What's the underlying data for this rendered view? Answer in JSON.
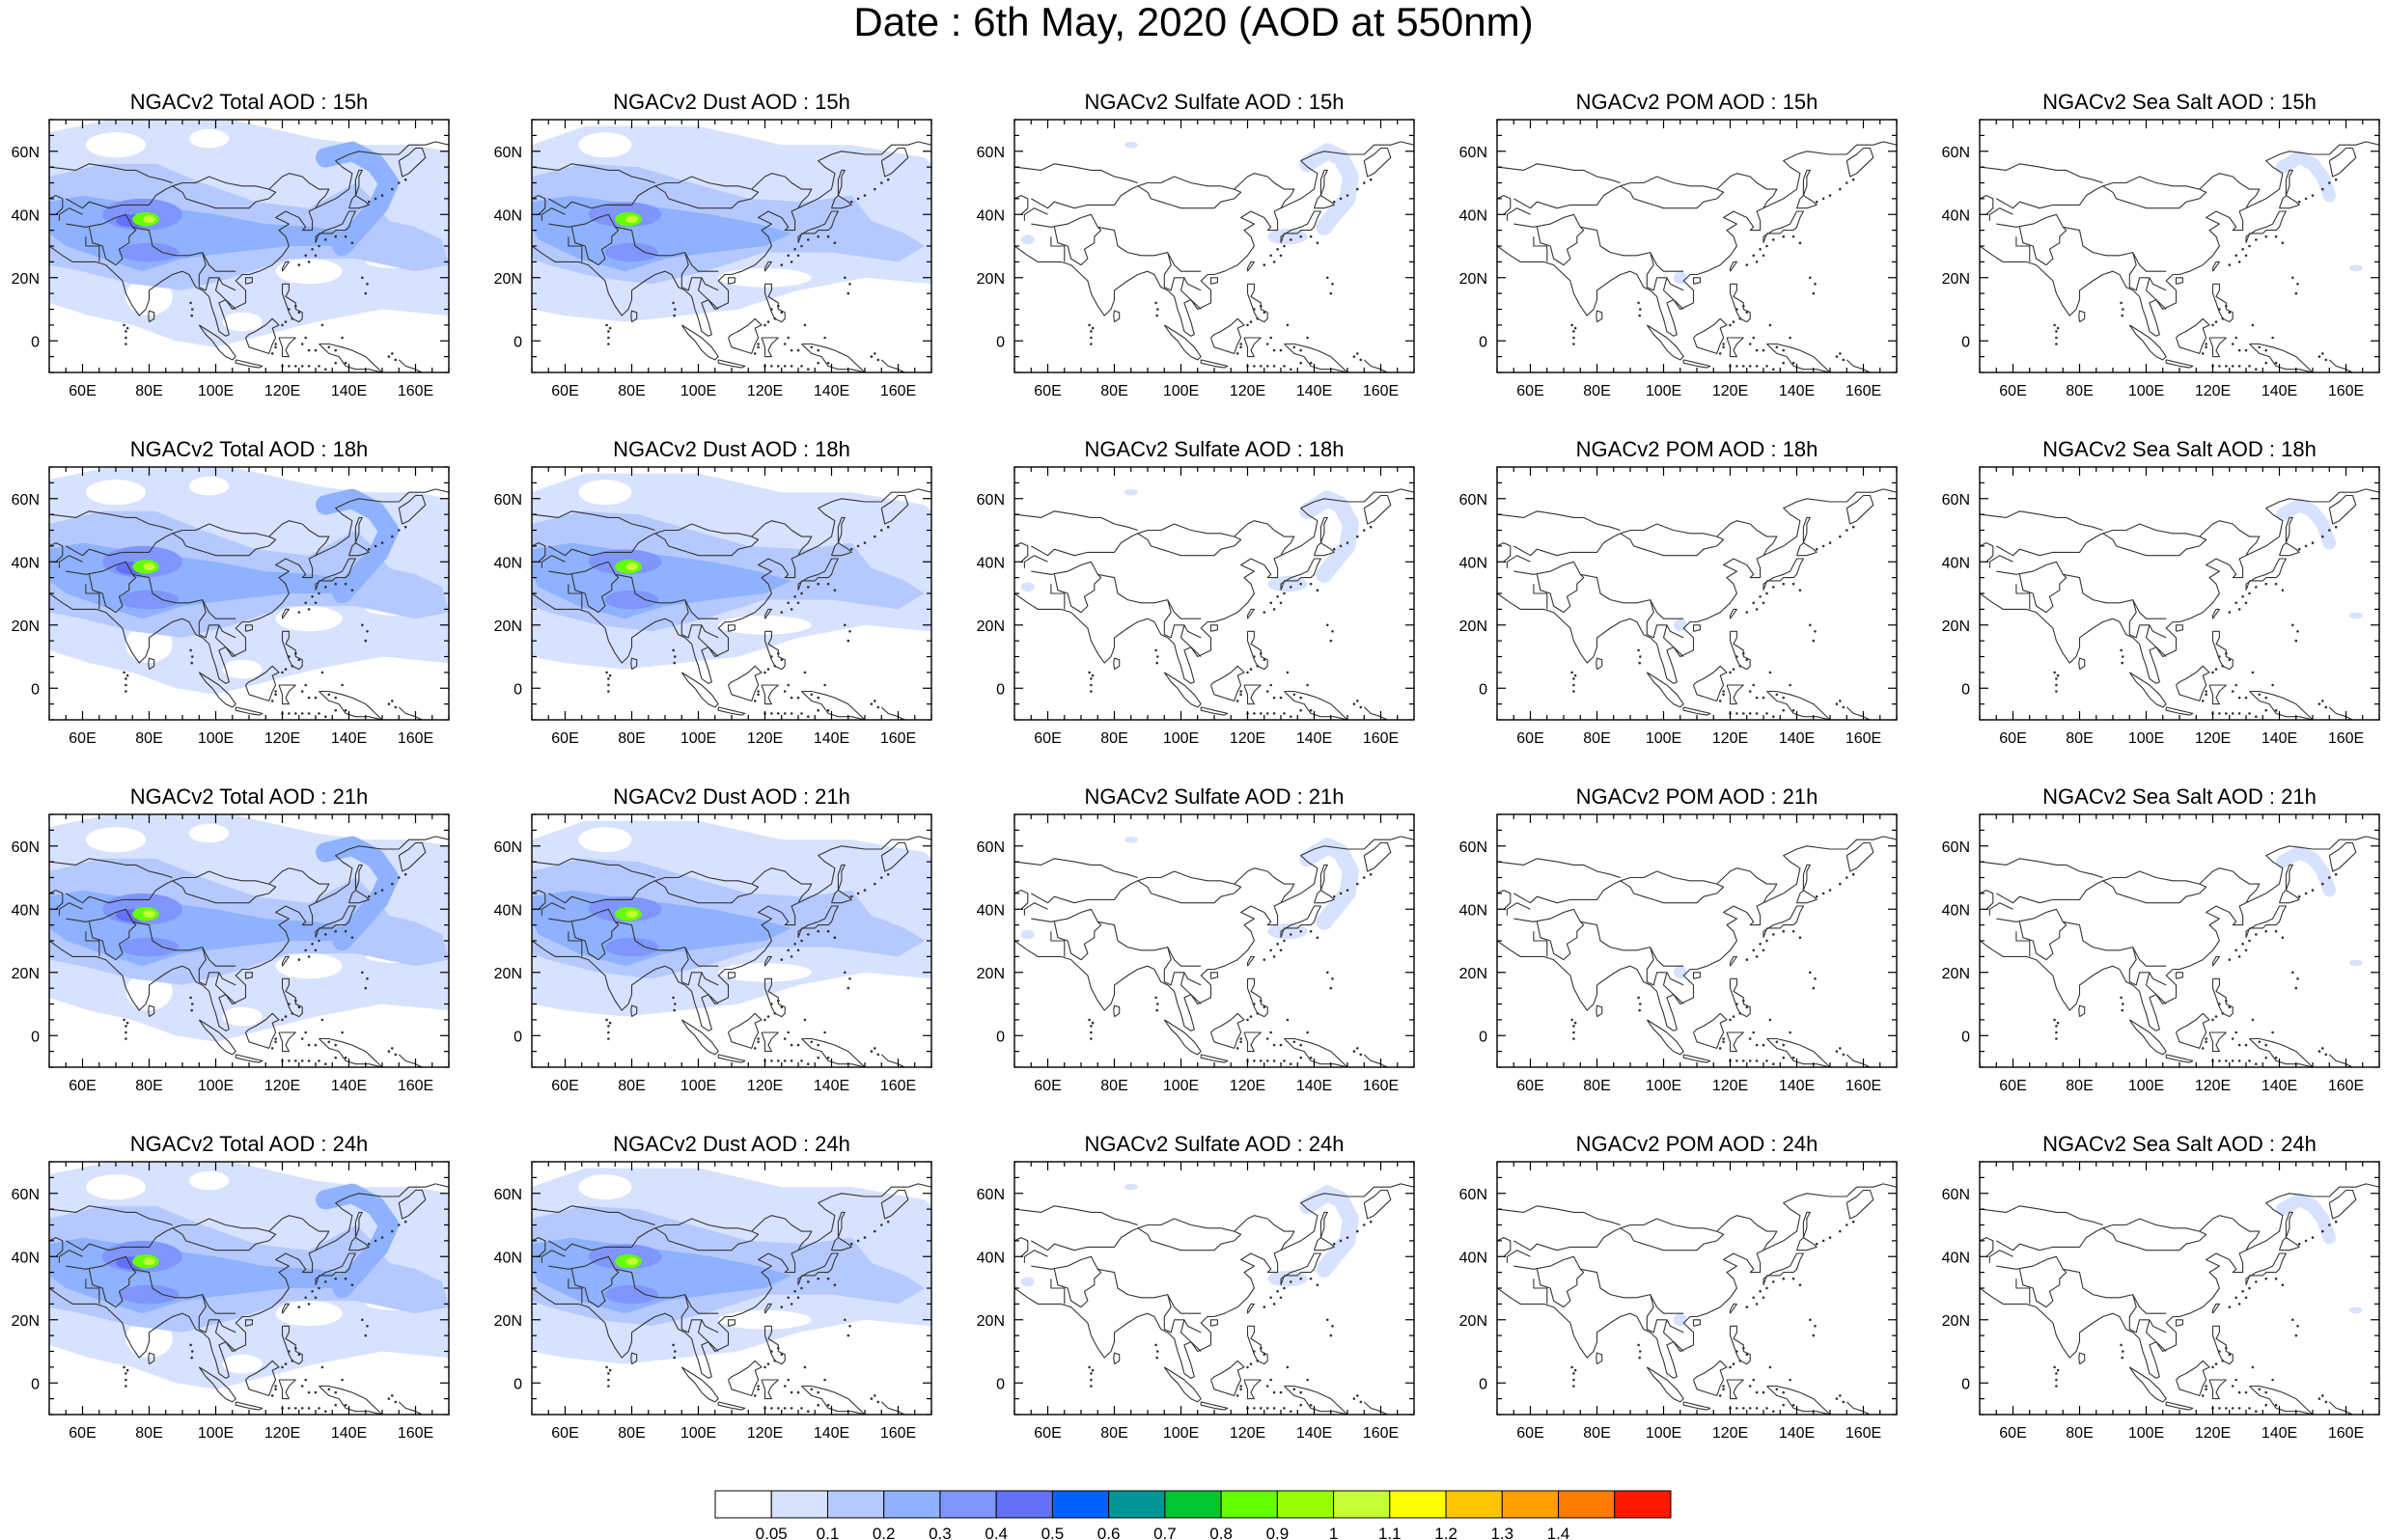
{
  "title": "Date : 6th May, 2020 (AOD at 550nm)",
  "lon_ticks": [
    "60E",
    "80E",
    "100E",
    "120E",
    "140E",
    "160E"
  ],
  "lat_ticks": [
    "60N",
    "40N",
    "20N",
    "0"
  ],
  "rows": [
    {
      "hour": "15h",
      "panels": [
        {
          "title": "NGACv2 Total AOD : 15h",
          "species": "total"
        },
        {
          "title": "NGACv2 Dust AOD : 15h",
          "species": "dust"
        },
        {
          "title": "NGACv2 Sulfate AOD : 15h",
          "species": "sulfate"
        },
        {
          "title": "NGACv2 POM AOD : 15h",
          "species": "pom"
        },
        {
          "title": "NGACv2 Sea Salt AOD : 15h",
          "species": "seasalt"
        }
      ]
    },
    {
      "hour": "18h",
      "panels": [
        {
          "title": "NGACv2 Total AOD : 18h",
          "species": "total"
        },
        {
          "title": "NGACv2 Dust AOD : 18h",
          "species": "dust"
        },
        {
          "title": "NGACv2 Sulfate AOD : 18h",
          "species": "sulfate"
        },
        {
          "title": "NGACv2 POM AOD : 18h",
          "species": "pom"
        },
        {
          "title": "NGACv2 Sea Salt AOD : 18h",
          "species": "seasalt"
        }
      ]
    },
    {
      "hour": "21h",
      "panels": [
        {
          "title": "NGACv2 Total AOD : 21h",
          "species": "total"
        },
        {
          "title": "NGACv2 Dust AOD : 21h",
          "species": "dust"
        },
        {
          "title": "NGACv2 Sulfate AOD : 21h",
          "species": "sulfate"
        },
        {
          "title": "NGACv2 POM AOD : 21h",
          "species": "pom"
        },
        {
          "title": "NGACv2 Sea Salt AOD : 21h",
          "species": "seasalt"
        }
      ]
    },
    {
      "hour": "24h",
      "panels": [
        {
          "title": "NGACv2 Total AOD : 24h",
          "species": "total"
        },
        {
          "title": "NGACv2 Dust AOD : 24h",
          "species": "dust"
        },
        {
          "title": "NGACv2 Sulfate AOD : 24h",
          "species": "sulfate"
        },
        {
          "title": "NGACv2 POM AOD : 24h",
          "species": "pom"
        },
        {
          "title": "NGACv2 Sea Salt  AOD : 24h",
          "species": "seasalt"
        }
      ]
    }
  ],
  "colorbar": {
    "labels": [
      "0.05",
      "0.1",
      "0.2",
      "0.3",
      "0.4",
      "0.5",
      "0.6",
      "0.7",
      "0.8",
      "0.9",
      "1",
      "1.1",
      "1.2",
      "1.3",
      "1.4"
    ],
    "colors": [
      "#ffffff",
      "#d6e2ff",
      "#b5c9ff",
      "#8eb2ff",
      "#7f96ff",
      "#6370f8",
      "#0063ff",
      "#009696",
      "#00c633",
      "#63ff00",
      "#96ff00",
      "#c6ff33",
      "#ffff00",
      "#ffc600",
      "#ffa000",
      "#ff7c00",
      "#ff1900"
    ]
  },
  "colors": {
    "low": "#d6e2ff",
    "mid": "#b5c9ff",
    "moderate": "#8eb2ff",
    "high": "#7f96ff",
    "very_high": "#6370f8",
    "hotspot": "#63ff00",
    "hotspot_core": "#c6ff33"
  }
}
